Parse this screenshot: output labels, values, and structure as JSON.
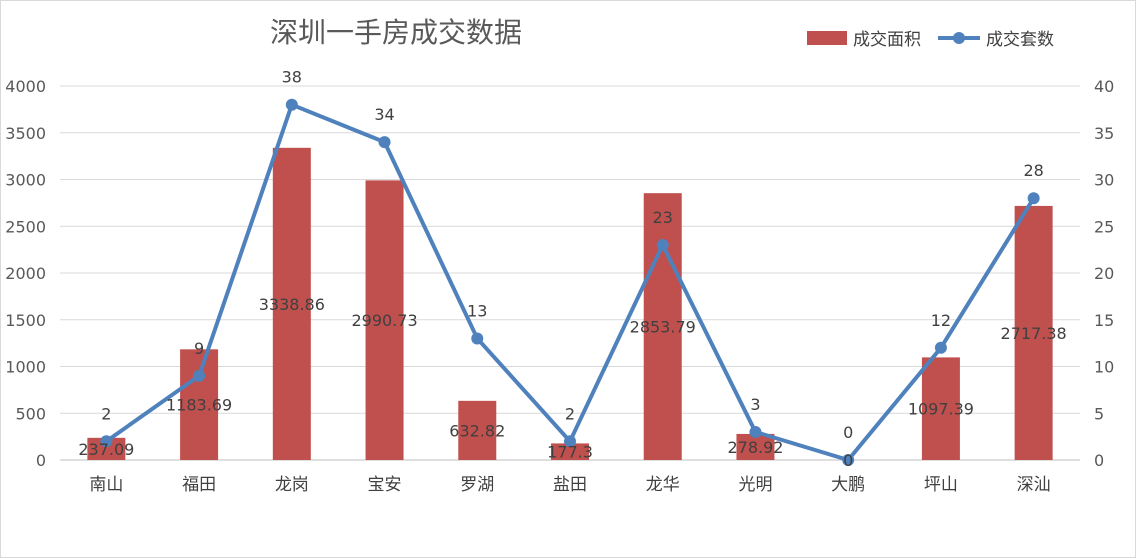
{
  "chart_data": {
    "type": "bar",
    "title": "深圳一手房成交数据",
    "categories": [
      "南山",
      "福田",
      "龙岗",
      "宝安",
      "罗湖",
      "盐田",
      "龙华",
      "光明",
      "大鹏",
      "坪山",
      "深汕"
    ],
    "series": [
      {
        "name": "成交面积",
        "type": "bar",
        "axis": "left",
        "color": "#C0504D",
        "values": [
          237.09,
          1183.69,
          3338.86,
          2990.73,
          632.82,
          177.3,
          2853.79,
          278.92,
          0,
          1097.39,
          2717.38
        ],
        "labels": [
          "237.09",
          "1183.69",
          "3338.86",
          "2990.73",
          "632.82",
          "177.3",
          "2853.79",
          "278.92",
          "0",
          "1097.39",
          "2717.38"
        ]
      },
      {
        "name": "成交套数",
        "type": "line",
        "axis": "right",
        "color": "#4F81BD",
        "values": [
          2,
          9,
          38,
          34,
          13,
          2,
          23,
          3,
          0,
          12,
          28
        ],
        "labels": [
          "2",
          "9",
          "38",
          "34",
          "13",
          "2",
          "23",
          "3",
          "0",
          "12",
          "28"
        ]
      }
    ],
    "y_left": {
      "min": 0,
      "max": 4000,
      "step": 500,
      "ticks": [
        "0",
        "500",
        "1000",
        "1500",
        "2000",
        "2500",
        "3000",
        "3500",
        "4000"
      ]
    },
    "y_right": {
      "min": 0,
      "max": 40,
      "step": 5,
      "ticks": [
        "0",
        "5",
        "10",
        "15",
        "20",
        "25",
        "30",
        "35",
        "40"
      ]
    },
    "grid": true,
    "legend": "top-right"
  }
}
